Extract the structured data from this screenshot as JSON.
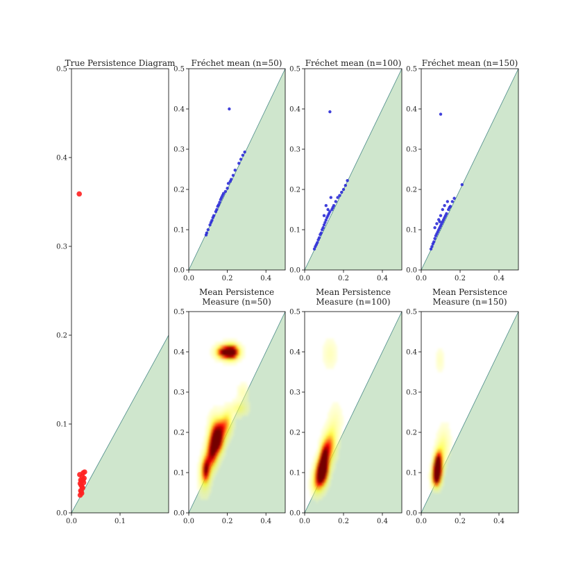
{
  "chart_data": [
    {
      "id": "true",
      "type": "scatter",
      "title": "True Persistence Diagram",
      "xlim": [
        0,
        0.2
      ],
      "ylim": [
        0,
        0.5
      ],
      "xticks": [
        0.0,
        0.1
      ],
      "xtick_labels": [
        "0.0",
        "0.1"
      ],
      "yticks": [
        0.0,
        0.1,
        0.2,
        0.3,
        0.4,
        0.5
      ],
      "ytick_labels": [
        "0.0",
        "0.1",
        "0.2",
        "0.3",
        "0.4",
        "0.5"
      ],
      "diagonal_fill": "#cfe6cd",
      "point_color": "#ff2020",
      "points": [
        [
          0.016,
          0.359
        ],
        [
          0.018,
          0.02
        ],
        [
          0.019,
          0.025
        ],
        [
          0.02,
          0.031
        ],
        [
          0.021,
          0.036
        ],
        [
          0.022,
          0.041
        ],
        [
          0.024,
          0.045
        ],
        [
          0.027,
          0.046
        ],
        [
          0.021,
          0.022
        ],
        [
          0.023,
          0.028
        ],
        [
          0.025,
          0.034
        ],
        [
          0.026,
          0.039
        ],
        [
          0.017,
          0.043
        ],
        [
          0.019,
          0.037
        ],
        [
          0.022,
          0.029
        ],
        [
          0.02,
          0.024
        ],
        [
          0.024,
          0.037
        ],
        [
          0.018,
          0.033
        ]
      ]
    },
    {
      "id": "fm50",
      "type": "scatter",
      "title": "Fréchet mean (n=50)",
      "xlim": [
        0,
        0.5
      ],
      "ylim": [
        0,
        0.5
      ],
      "xticks": [
        0.0,
        0.2,
        0.4
      ],
      "xtick_labels": [
        "0.0",
        "0.2",
        "0.4"
      ],
      "yticks": [
        0.0,
        0.1,
        0.2,
        0.3,
        0.4,
        0.5
      ],
      "ytick_labels": [
        "0.0",
        "0.1",
        "0.2",
        "0.3",
        "0.4",
        "0.5"
      ],
      "diagonal_fill": "#cfe6cd",
      "point_color": "#2b2bd6",
      "points": [
        [
          0.21,
          0.4
        ],
        [
          0.09,
          0.087
        ],
        [
          0.093,
          0.092
        ],
        [
          0.1,
          0.1
        ],
        [
          0.11,
          0.112
        ],
        [
          0.115,
          0.118
        ],
        [
          0.12,
          0.123
        ],
        [
          0.125,
          0.13
        ],
        [
          0.13,
          0.135
        ],
        [
          0.14,
          0.145
        ],
        [
          0.145,
          0.15
        ],
        [
          0.15,
          0.158
        ],
        [
          0.155,
          0.162
        ],
        [
          0.16,
          0.168
        ],
        [
          0.165,
          0.175
        ],
        [
          0.17,
          0.18
        ],
        [
          0.175,
          0.185
        ],
        [
          0.18,
          0.19
        ],
        [
          0.19,
          0.195
        ],
        [
          0.2,
          0.203
        ],
        [
          0.205,
          0.215
        ],
        [
          0.215,
          0.22
        ],
        [
          0.22,
          0.225
        ],
        [
          0.23,
          0.235
        ],
        [
          0.24,
          0.248
        ],
        [
          0.26,
          0.265
        ],
        [
          0.27,
          0.275
        ],
        [
          0.28,
          0.285
        ],
        [
          0.29,
          0.293
        ]
      ]
    },
    {
      "id": "fm100",
      "type": "scatter",
      "title": "Fréchet mean (n=100)",
      "xlim": [
        0,
        0.5
      ],
      "ylim": [
        0,
        0.5
      ],
      "xticks": [
        0.0,
        0.2,
        0.4
      ],
      "xtick_labels": [
        "0.0",
        "0.2",
        "0.4"
      ],
      "yticks": [
        0.0,
        0.1,
        0.2,
        0.3,
        0.4,
        0.5
      ],
      "ytick_labels": [
        "0.0",
        "0.1",
        "0.2",
        "0.3",
        "0.4",
        "0.5"
      ],
      "diagonal_fill": "#cfe6cd",
      "point_color": "#2b2bd6",
      "points": [
        [
          0.13,
          0.393
        ],
        [
          0.05,
          0.052
        ],
        [
          0.055,
          0.058
        ],
        [
          0.06,
          0.063
        ],
        [
          0.065,
          0.068
        ],
        [
          0.07,
          0.075
        ],
        [
          0.075,
          0.08
        ],
        [
          0.08,
          0.088
        ],
        [
          0.085,
          0.092
        ],
        [
          0.09,
          0.1
        ],
        [
          0.095,
          0.105
        ],
        [
          0.1,
          0.112
        ],
        [
          0.105,
          0.118
        ],
        [
          0.11,
          0.124
        ],
        [
          0.115,
          0.13
        ],
        [
          0.12,
          0.135
        ],
        [
          0.125,
          0.14
        ],
        [
          0.13,
          0.145
        ],
        [
          0.14,
          0.15
        ],
        [
          0.145,
          0.155
        ],
        [
          0.15,
          0.16
        ],
        [
          0.16,
          0.17
        ],
        [
          0.17,
          0.18
        ],
        [
          0.18,
          0.185
        ],
        [
          0.19,
          0.193
        ],
        [
          0.2,
          0.2
        ],
        [
          0.21,
          0.21
        ],
        [
          0.22,
          0.222
        ],
        [
          0.1,
          0.135
        ],
        [
          0.12,
          0.15
        ],
        [
          0.135,
          0.18
        ],
        [
          0.11,
          0.16
        ]
      ]
    },
    {
      "id": "fm150",
      "type": "scatter",
      "title": "Fréchet mean (n=150)",
      "xlim": [
        0,
        0.5
      ],
      "ylim": [
        0,
        0.5
      ],
      "xticks": [
        0.0,
        0.2,
        0.4
      ],
      "xtick_labels": [
        "0.0",
        "0.2",
        "0.4"
      ],
      "yticks": [
        0.0,
        0.1,
        0.2,
        0.3,
        0.4,
        0.5
      ],
      "ytick_labels": [
        "0.0",
        "0.1",
        "0.2",
        "0.3",
        "0.4",
        "0.5"
      ],
      "diagonal_fill": "#cfe6cd",
      "point_color": "#2b2bd6",
      "points": [
        [
          0.1,
          0.387
        ],
        [
          0.05,
          0.052
        ],
        [
          0.055,
          0.058
        ],
        [
          0.06,
          0.065
        ],
        [
          0.065,
          0.07
        ],
        [
          0.07,
          0.078
        ],
        [
          0.075,
          0.085
        ],
        [
          0.08,
          0.09
        ],
        [
          0.085,
          0.095
        ],
        [
          0.09,
          0.1
        ],
        [
          0.095,
          0.105
        ],
        [
          0.1,
          0.11
        ],
        [
          0.105,
          0.115
        ],
        [
          0.11,
          0.12
        ],
        [
          0.115,
          0.125
        ],
        [
          0.12,
          0.13
        ],
        [
          0.125,
          0.135
        ],
        [
          0.13,
          0.14
        ],
        [
          0.14,
          0.15
        ],
        [
          0.15,
          0.158
        ],
        [
          0.16,
          0.17
        ],
        [
          0.17,
          0.178
        ],
        [
          0.21,
          0.212
        ],
        [
          0.09,
          0.125
        ],
        [
          0.1,
          0.135
        ],
        [
          0.11,
          0.15
        ],
        [
          0.12,
          0.16
        ],
        [
          0.135,
          0.17
        ],
        [
          0.145,
          0.155
        ],
        [
          0.08,
          0.115
        ],
        [
          0.07,
          0.105
        ],
        [
          0.095,
          0.12
        ]
      ]
    },
    {
      "id": "mpm50",
      "type": "heatmap",
      "title": "Mean Persistence\nMeasure (n=50)",
      "xlim": [
        0,
        0.5
      ],
      "ylim": [
        0,
        0.5
      ],
      "xticks": [
        0.0,
        0.2,
        0.4
      ],
      "xtick_labels": [
        "0.0",
        "0.2",
        "0.4"
      ],
      "yticks": [
        0.0,
        0.1,
        0.2,
        0.3,
        0.4,
        0.5
      ],
      "ytick_labels": [
        "0.0",
        "0.1",
        "0.2",
        "0.3",
        "0.4",
        "0.5"
      ],
      "diagonal_fill": "#cfe6cd",
      "colormap": "hot_r",
      "blobs": [
        [
          0.22,
          0.4,
          0.025,
          0.012,
          1.0
        ],
        [
          0.2,
          0.4,
          0.04,
          0.012,
          0.55
        ],
        [
          0.17,
          0.4,
          0.02,
          0.01,
          0.4
        ],
        [
          0.15,
          0.18,
          0.02,
          0.02,
          1.0
        ],
        [
          0.12,
          0.15,
          0.02,
          0.025,
          0.85
        ],
        [
          0.09,
          0.11,
          0.015,
          0.02,
          0.75
        ],
        [
          0.17,
          0.21,
          0.025,
          0.02,
          0.55
        ],
        [
          0.2,
          0.23,
          0.02,
          0.02,
          0.3
        ],
        [
          0.26,
          0.26,
          0.03,
          0.012,
          0.25
        ],
        [
          0.28,
          0.3,
          0.02,
          0.015,
          0.15
        ],
        [
          0.08,
          0.09,
          0.02,
          0.03,
          0.3
        ],
        [
          0.13,
          0.2,
          0.02,
          0.03,
          0.35
        ]
      ]
    },
    {
      "id": "mpm100",
      "type": "heatmap",
      "title": "Mean Persistence\nMeasure (n=100)",
      "xlim": [
        0,
        0.5
      ],
      "ylim": [
        0,
        0.5
      ],
      "xticks": [
        0.0,
        0.2,
        0.4
      ],
      "xtick_labels": [
        "0.0",
        "0.2",
        "0.4"
      ],
      "yticks": [
        0.0,
        0.1,
        0.2,
        0.3,
        0.4,
        0.5
      ],
      "ytick_labels": [
        "0.0",
        "0.1",
        "0.2",
        "0.3",
        "0.4",
        "0.5"
      ],
      "diagonal_fill": "#cfe6cd",
      "colormap": "hot_r",
      "blobs": [
        [
          0.1,
          0.13,
          0.015,
          0.025,
          1.0
        ],
        [
          0.09,
          0.11,
          0.02,
          0.02,
          0.85
        ],
        [
          0.08,
          0.09,
          0.02,
          0.02,
          0.65
        ],
        [
          0.12,
          0.16,
          0.02,
          0.025,
          0.5
        ],
        [
          0.14,
          0.18,
          0.02,
          0.03,
          0.25
        ],
        [
          0.06,
          0.07,
          0.02,
          0.02,
          0.3
        ],
        [
          0.13,
          0.395,
          0.025,
          0.025,
          0.14
        ],
        [
          0.16,
          0.23,
          0.025,
          0.03,
          0.12
        ]
      ]
    },
    {
      "id": "mpm150",
      "type": "heatmap",
      "title": "Mean Persistence\nMeasure (n=150)",
      "xlim": [
        0,
        0.5
      ],
      "ylim": [
        0,
        0.5
      ],
      "xticks": [
        0.0,
        0.2,
        0.4
      ],
      "xtick_labels": [
        "0.0",
        "0.2",
        "0.4"
      ],
      "yticks": [
        0.0,
        0.1,
        0.2,
        0.3,
        0.4,
        0.5
      ],
      "ytick_labels": [
        "0.0",
        "0.1",
        "0.2",
        "0.3",
        "0.4",
        "0.5"
      ],
      "diagonal_fill": "#cfe6cd",
      "colormap": "hot_r",
      "blobs": [
        [
          0.085,
          0.11,
          0.013,
          0.02,
          1.0
        ],
        [
          0.08,
          0.1,
          0.015,
          0.02,
          0.8
        ],
        [
          0.09,
          0.13,
          0.015,
          0.02,
          0.55
        ],
        [
          0.07,
          0.085,
          0.015,
          0.015,
          0.35
        ],
        [
          0.11,
          0.16,
          0.02,
          0.025,
          0.2
        ],
        [
          0.12,
          0.19,
          0.025,
          0.03,
          0.08
        ],
        [
          0.095,
          0.38,
          0.015,
          0.02,
          0.12
        ]
      ]
    }
  ]
}
